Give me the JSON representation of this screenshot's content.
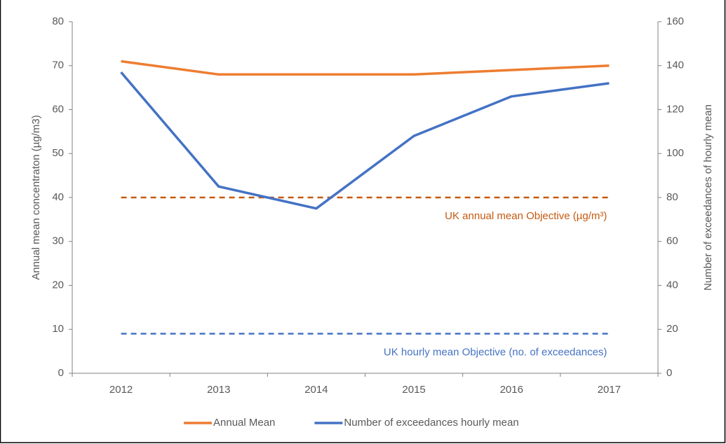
{
  "chart_data": {
    "type": "line",
    "categories": [
      "2012",
      "2013",
      "2014",
      "2015",
      "2016",
      "2017"
    ],
    "series": [
      {
        "name": "Annual Mean",
        "color": "#ed7d31",
        "values": [
          71,
          68,
          68,
          68,
          69,
          70
        ]
      },
      {
        "name": "Number of exceedances hourly mean",
        "color": "#4472c4",
        "axis": "y2",
        "values": [
          137,
          85,
          75,
          108,
          126,
          132
        ]
      }
    ],
    "ylabel": "Annual mean concentraton (µg/m3)",
    "y2label": "Number of exceedances of hourly mean",
    "ylim": [
      0,
      80
    ],
    "yticks": [
      0,
      10,
      20,
      30,
      40,
      50,
      60,
      70,
      80
    ],
    "y2lim": [
      0,
      160
    ],
    "y2ticks": [
      0,
      20,
      40,
      60,
      80,
      100,
      120,
      140,
      160
    ],
    "reference_lines": [
      {
        "value": 40,
        "axis": "y",
        "color": "#c55a11",
        "label": "UK annual mean Objective (µg/m³)"
      },
      {
        "value": 18,
        "axis": "y2",
        "color": "#4472c4",
        "label": "UK hourly mean Objective (no. of exceedances)"
      }
    ],
    "legend": "bottom"
  }
}
